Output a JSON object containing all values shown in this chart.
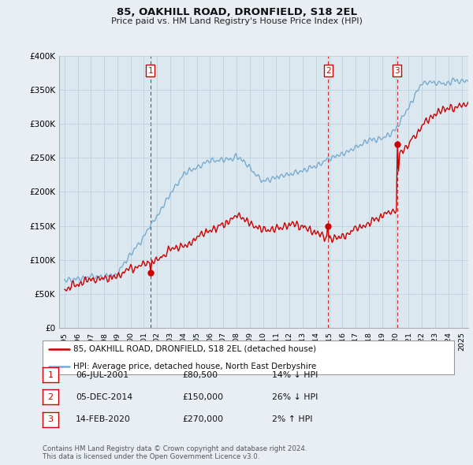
{
  "title": "85, OAKHILL ROAD, DRONFIELD, S18 2EL",
  "subtitle": "Price paid vs. HM Land Registry's House Price Index (HPI)",
  "ylim": [
    0,
    400000
  ],
  "yticks": [
    0,
    50000,
    100000,
    150000,
    200000,
    250000,
    300000,
    350000,
    400000
  ],
  "ytick_labels": [
    "£0",
    "£50K",
    "£100K",
    "£150K",
    "£200K",
    "£250K",
    "£300K",
    "£350K",
    "£400K"
  ],
  "sale_dates": [
    2001.5,
    2014.92,
    2020.12
  ],
  "sale_prices": [
    80500,
    150000,
    270000
  ],
  "sale_labels": [
    "1",
    "2",
    "3"
  ],
  "red_line_color": "#cc0000",
  "blue_line_color": "#7aabcf",
  "vline_color": "#cc0000",
  "background_color": "#e8eef4",
  "plot_bg_color": "#dce8f0",
  "legend_line1": "85, OAKHILL ROAD, DRONFIELD, S18 2EL (detached house)",
  "legend_line2": "HPI: Average price, detached house, North East Derbyshire",
  "table_data": [
    [
      "1",
      "06-JUL-2001",
      "£80,500",
      "14% ↓ HPI"
    ],
    [
      "2",
      "05-DEC-2014",
      "£150,000",
      "26% ↓ HPI"
    ],
    [
      "3",
      "14-FEB-2020",
      "£270,000",
      "2% ↑ HPI"
    ]
  ],
  "footnote": "Contains HM Land Registry data © Crown copyright and database right 2024.\nThis data is licensed under the Open Government Licence v3.0.",
  "xmin": 1994.6,
  "xmax": 2025.5
}
